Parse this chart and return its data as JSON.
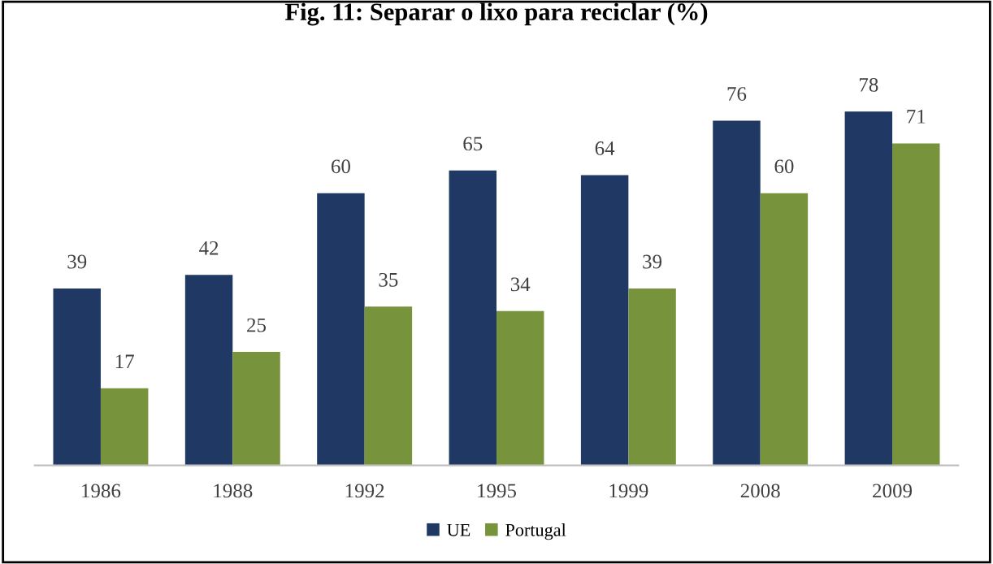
{
  "chart_data": {
    "type": "bar",
    "title": "Fig. 11: Separar o lixo para reciclar (%)",
    "categories": [
      "1986",
      "1988",
      "1992",
      "1995",
      "1999",
      "2008",
      "2009"
    ],
    "series": [
      {
        "name": "UE",
        "color": "#1f3864",
        "values": [
          39,
          42,
          60,
          65,
          64,
          76,
          78
        ]
      },
      {
        "name": "Portugal",
        "color": "#77933c",
        "values": [
          17,
          25,
          35,
          34,
          39,
          60,
          71
        ]
      }
    ],
    "data_labels": true,
    "legend": "bottom",
    "grid": false,
    "tick_labels": "x"
  }
}
